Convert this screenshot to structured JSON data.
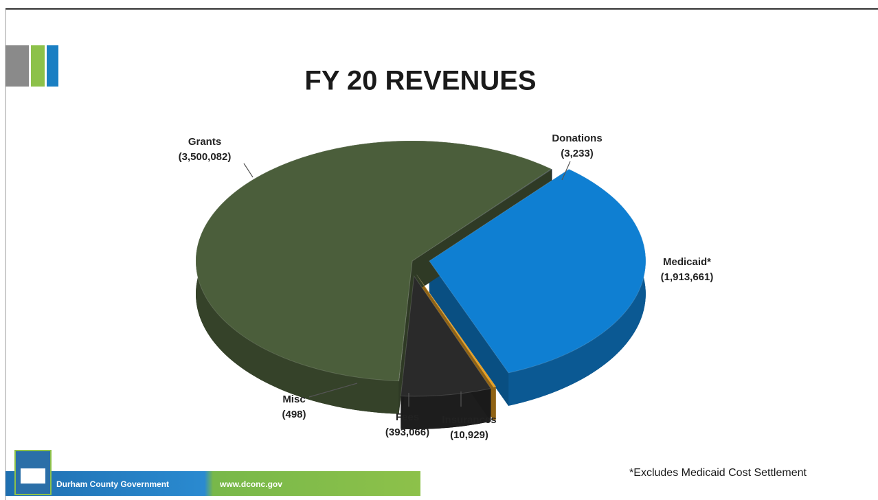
{
  "chart_data": {
    "type": "pie",
    "title": "FY 20 REVENUES",
    "categories": [
      "Donations",
      "Medicaid*",
      "Insurances",
      "Fees",
      "Misc",
      "Grants"
    ],
    "values": [
      3233,
      1913661,
      10929,
      393066,
      498,
      3500082
    ],
    "value_labels": [
      "(3,233)",
      "(1,913,661)",
      "(10,929)",
      "(393,066)",
      "(498)",
      "(3,500,082)"
    ],
    "colors": [
      "#1f2d3d",
      "#0f7fd2",
      "#e8a020",
      "#2a2a2a",
      "#dcdcdc",
      "#4b5e3b"
    ]
  },
  "footnote": "*Excludes Medicaid Cost Settlement",
  "footer": {
    "name": "Durham County Government",
    "url": "www.dconc.gov"
  }
}
